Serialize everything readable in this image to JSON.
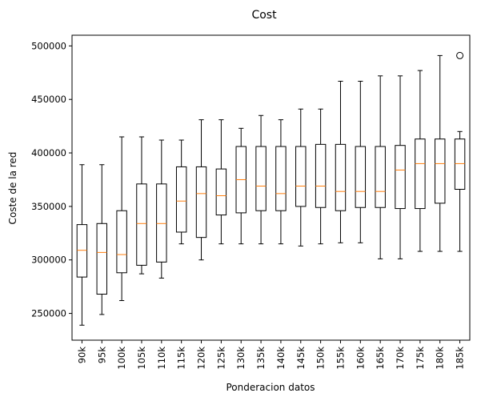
{
  "chart_data": {
    "type": "box",
    "title": "Cost",
    "xlabel": "Ponderacion datos",
    "ylabel": "Coste de la red",
    "ylim": [
      225000,
      510000
    ],
    "yticks": [
      250000,
      300000,
      350000,
      400000,
      450000,
      500000
    ],
    "grid": false,
    "colors": {
      "box": "#000000",
      "median": "#ff7f0e",
      "background": "#ffffff"
    },
    "categories": [
      "90k",
      "95k",
      "100k",
      "105k",
      "110k",
      "115k",
      "120k",
      "125k",
      "130k",
      "135k",
      "140k",
      "145k",
      "150k",
      "155k",
      "160k",
      "165k",
      "170k",
      "175k",
      "180k",
      "185k"
    ],
    "boxes": [
      {
        "whislo": 239000,
        "q1": 284000,
        "median": 309000,
        "q3": 333000,
        "whishi": 389000,
        "fliers": []
      },
      {
        "whislo": 249000,
        "q1": 268000,
        "median": 307000,
        "q3": 334000,
        "whishi": 389000,
        "fliers": []
      },
      {
        "whislo": 262000,
        "q1": 288000,
        "median": 305000,
        "q3": 346000,
        "whishi": 415000,
        "fliers": []
      },
      {
        "whislo": 287000,
        "q1": 295000,
        "median": 334000,
        "q3": 371000,
        "whishi": 415000,
        "fliers": []
      },
      {
        "whislo": 283000,
        "q1": 298000,
        "median": 334000,
        "q3": 371000,
        "whishi": 412000,
        "fliers": []
      },
      {
        "whislo": 315000,
        "q1": 326000,
        "median": 355000,
        "q3": 387000,
        "whishi": 412000,
        "fliers": []
      },
      {
        "whislo": 300000,
        "q1": 321000,
        "median": 362000,
        "q3": 387000,
        "whishi": 431000,
        "fliers": []
      },
      {
        "whislo": 315000,
        "q1": 342000,
        "median": 360000,
        "q3": 385000,
        "whishi": 431000,
        "fliers": []
      },
      {
        "whislo": 315000,
        "q1": 344000,
        "median": 375000,
        "q3": 406000,
        "whishi": 423000,
        "fliers": []
      },
      {
        "whislo": 315000,
        "q1": 346000,
        "median": 369000,
        "q3": 406000,
        "whishi": 435000,
        "fliers": []
      },
      {
        "whislo": 315000,
        "q1": 346000,
        "median": 362000,
        "q3": 406000,
        "whishi": 431000,
        "fliers": []
      },
      {
        "whislo": 313000,
        "q1": 350000,
        "median": 369000,
        "q3": 406000,
        "whishi": 441000,
        "fliers": []
      },
      {
        "whislo": 315000,
        "q1": 349000,
        "median": 369000,
        "q3": 408000,
        "whishi": 441000,
        "fliers": []
      },
      {
        "whislo": 316000,
        "q1": 346000,
        "median": 364000,
        "q3": 408000,
        "whishi": 467000,
        "fliers": []
      },
      {
        "whislo": 316000,
        "q1": 349000,
        "median": 364000,
        "q3": 406000,
        "whishi": 467000,
        "fliers": []
      },
      {
        "whislo": 301000,
        "q1": 349000,
        "median": 364000,
        "q3": 406000,
        "whishi": 472000,
        "fliers": []
      },
      {
        "whislo": 301000,
        "q1": 348000,
        "median": 384000,
        "q3": 407000,
        "whishi": 472000,
        "fliers": []
      },
      {
        "whislo": 308000,
        "q1": 348000,
        "median": 390000,
        "q3": 413000,
        "whishi": 477000,
        "fliers": []
      },
      {
        "whislo": 308000,
        "q1": 353000,
        "median": 390000,
        "q3": 413000,
        "whishi": 491000,
        "fliers": []
      },
      {
        "whislo": 308000,
        "q1": 366000,
        "median": 390000,
        "q3": 413000,
        "whishi": 420000,
        "fliers": [
          491000
        ]
      }
    ]
  }
}
